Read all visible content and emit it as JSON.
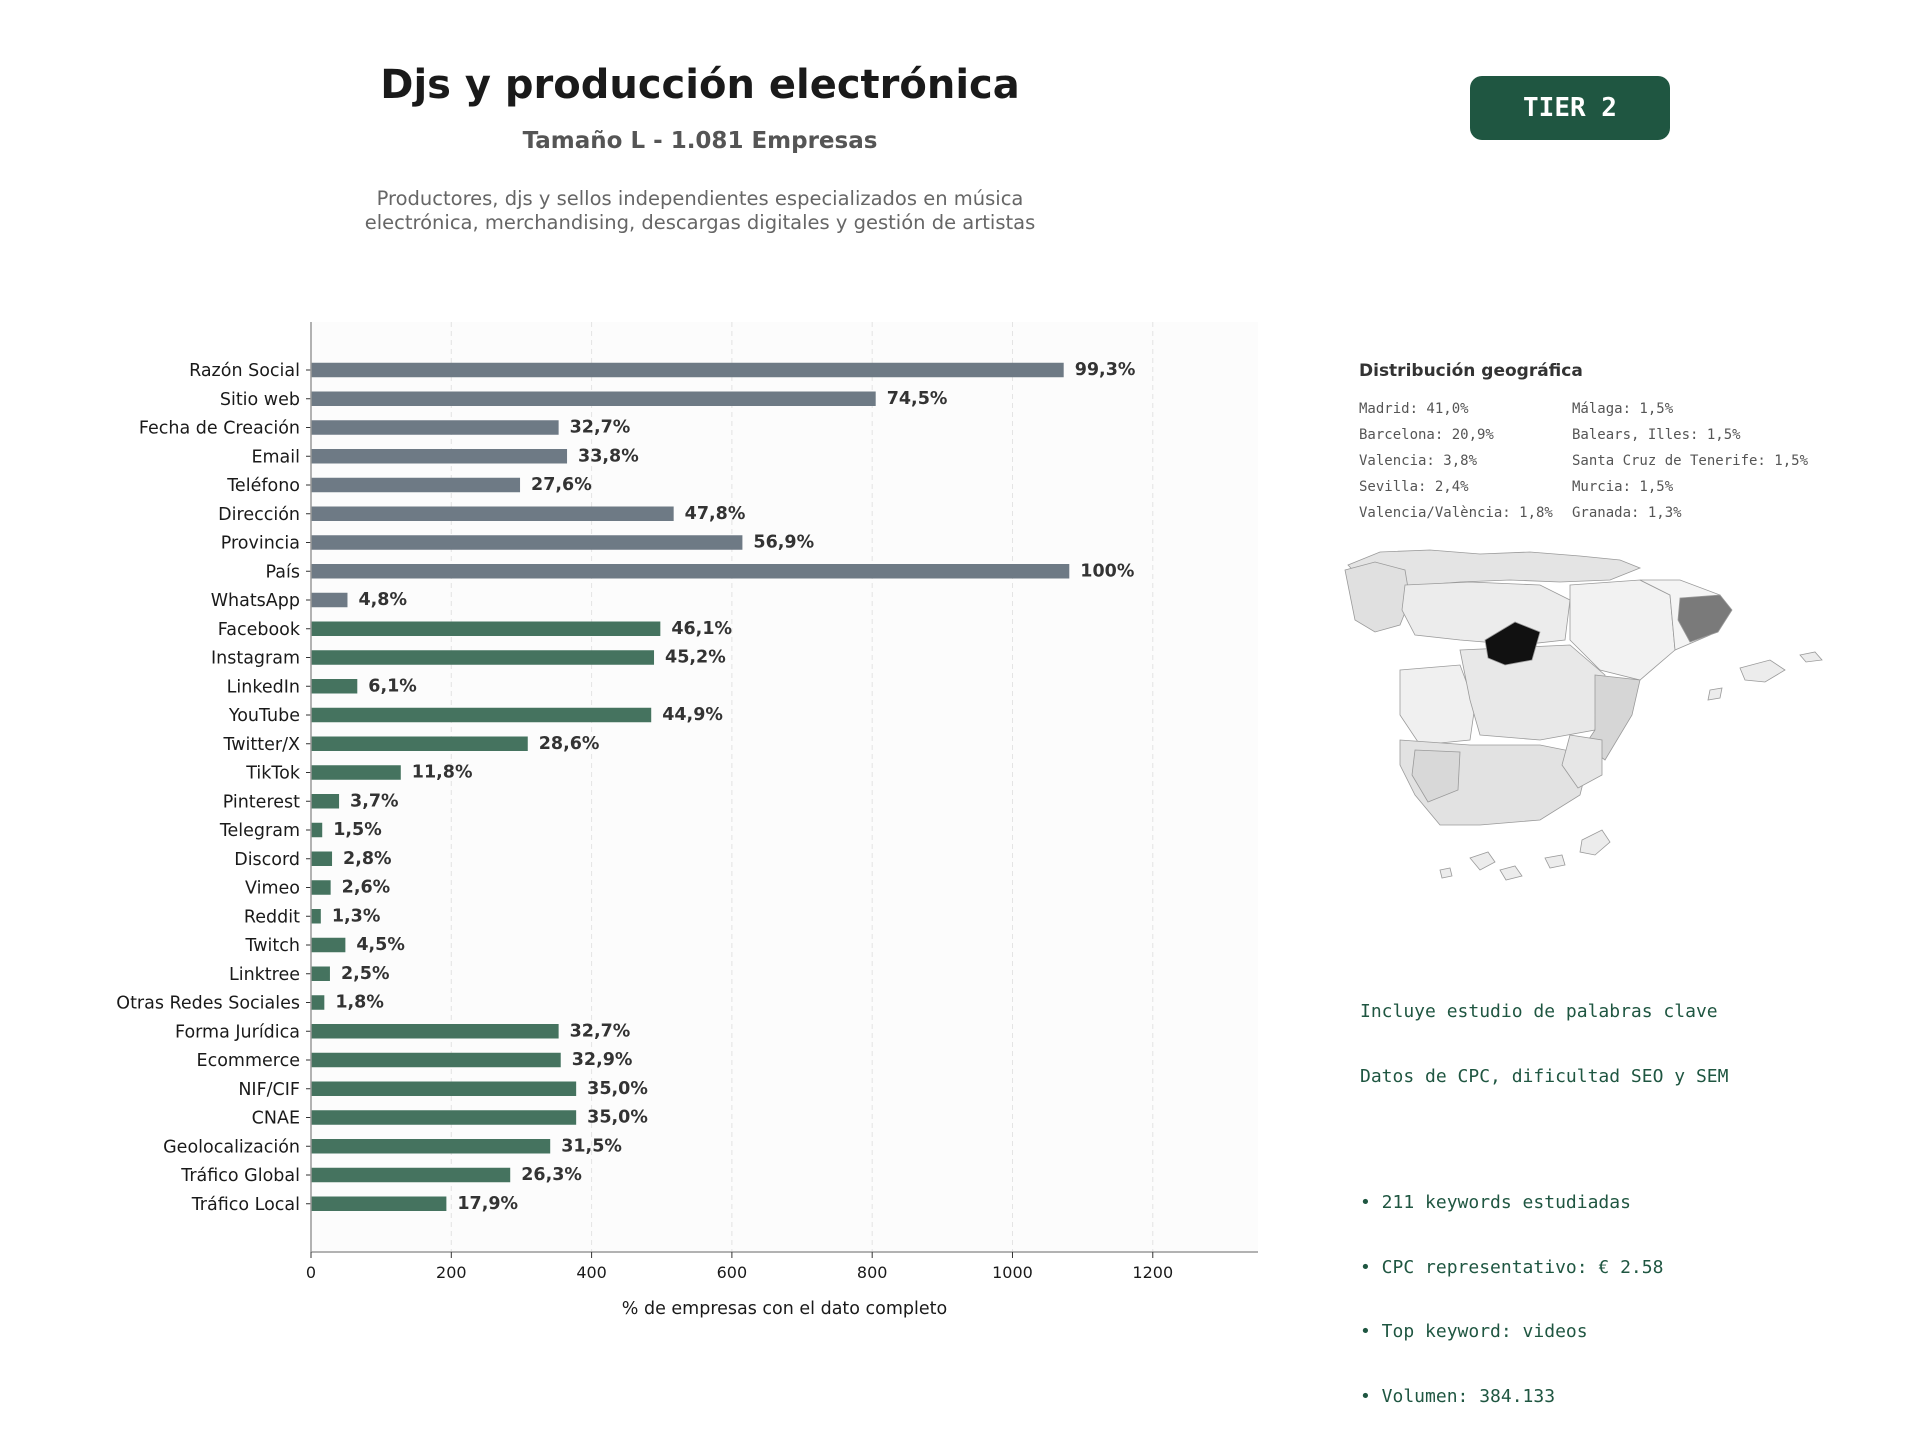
{
  "header": {
    "title": "Djs y producción electrónica",
    "subtitle": "Tamaño L - 1.081 Empresas",
    "description_line1": "Productores, djs y sellos independientes especializados en música",
    "description_line2": "electrónica, merchandising, descargas digitales y gestión de artistas",
    "tier": "TIER 2"
  },
  "chart_data": {
    "type": "bar",
    "orientation": "horizontal",
    "total": 1081,
    "xlabel": "% de empresas con el dato completo",
    "xlim": [
      0,
      1350
    ],
    "xticks": [
      0,
      200,
      400,
      600,
      800,
      1000,
      1200
    ],
    "grid": true,
    "colors": {
      "contact": "#6e7a85",
      "digital": "#45735f"
    },
    "bars": [
      {
        "label": "Razón Social",
        "percent": "99,3%",
        "value": 1073,
        "group": "contact"
      },
      {
        "label": "Sitio web",
        "percent": "74,5%",
        "value": 805,
        "group": "contact"
      },
      {
        "label": "Fecha de Creación",
        "percent": "32,7%",
        "value": 353,
        "group": "contact"
      },
      {
        "label": "Email",
        "percent": "33,8%",
        "value": 365,
        "group": "contact"
      },
      {
        "label": "Teléfono",
        "percent": "27,6%",
        "value": 298,
        "group": "contact"
      },
      {
        "label": "Dirección",
        "percent": "47,8%",
        "value": 517,
        "group": "contact"
      },
      {
        "label": "Provincia",
        "percent": "56,9%",
        "value": 615,
        "group": "contact"
      },
      {
        "label": "País",
        "percent": "100%",
        "value": 1081,
        "group": "contact"
      },
      {
        "label": "WhatsApp",
        "percent": "4,8%",
        "value": 52,
        "group": "contact"
      },
      {
        "label": "Facebook",
        "percent": "46,1%",
        "value": 498,
        "group": "digital"
      },
      {
        "label": "Instagram",
        "percent": "45,2%",
        "value": 489,
        "group": "digital"
      },
      {
        "label": "LinkedIn",
        "percent": "6,1%",
        "value": 66,
        "group": "digital"
      },
      {
        "label": "YouTube",
        "percent": "44,9%",
        "value": 485,
        "group": "digital"
      },
      {
        "label": "Twitter/X",
        "percent": "28,6%",
        "value": 309,
        "group": "digital"
      },
      {
        "label": "TikTok",
        "percent": "11,8%",
        "value": 128,
        "group": "digital"
      },
      {
        "label": "Pinterest",
        "percent": "3,7%",
        "value": 40,
        "group": "digital"
      },
      {
        "label": "Telegram",
        "percent": "1,5%",
        "value": 16,
        "group": "digital"
      },
      {
        "label": "Discord",
        "percent": "2,8%",
        "value": 30,
        "group": "digital"
      },
      {
        "label": "Vimeo",
        "percent": "2,6%",
        "value": 28,
        "group": "digital"
      },
      {
        "label": "Reddit",
        "percent": "1,3%",
        "value": 14,
        "group": "digital"
      },
      {
        "label": "Twitch",
        "percent": "4,5%",
        "value": 49,
        "group": "digital"
      },
      {
        "label": "Linktree",
        "percent": "2,5%",
        "value": 27,
        "group": "digital"
      },
      {
        "label": "Otras Redes Sociales",
        "percent": "1,8%",
        "value": 19,
        "group": "digital"
      },
      {
        "label": "Forma Jurídica",
        "percent": "32,7%",
        "value": 353,
        "group": "digital"
      },
      {
        "label": "Ecommerce",
        "percent": "32,9%",
        "value": 356,
        "group": "digital"
      },
      {
        "label": "NIF/CIF",
        "percent": "35,0%",
        "value": 378,
        "group": "digital"
      },
      {
        "label": "CNAE",
        "percent": "35,0%",
        "value": 378,
        "group": "digital"
      },
      {
        "label": "Geolocalización",
        "percent": "31,5%",
        "value": 341,
        "group": "digital"
      },
      {
        "label": "Tráfico Global",
        "percent": "26,3%",
        "value": 284,
        "group": "digital"
      },
      {
        "label": "Tráfico Local",
        "percent": "17,9%",
        "value": 193,
        "group": "digital"
      }
    ]
  },
  "geo": {
    "title": "Distribución geográfica",
    "col1": [
      "Madrid: 41,0%",
      "Barcelona: 20,9%",
      "Valencia: 3,8%",
      "Sevilla: 2,4%",
      "Valencia/València: 1,8%"
    ],
    "col2": [
      "Málaga: 1,5%",
      "Balears, Illes: 1,5%",
      "Santa Cruz de Tenerife: 1,5%",
      "Murcia: 1,5%",
      "Granada: 1,3%"
    ]
  },
  "keywords": {
    "line1": "Incluye estudio de palabras clave",
    "line2": "Datos de CPC, dificultad SEO y SEM",
    "bullets": [
      "• 211 keywords estudiadas",
      "• CPC representativo: € 2.58",
      "• Top keyword: videos",
      "• Volumen: 384.133"
    ]
  }
}
